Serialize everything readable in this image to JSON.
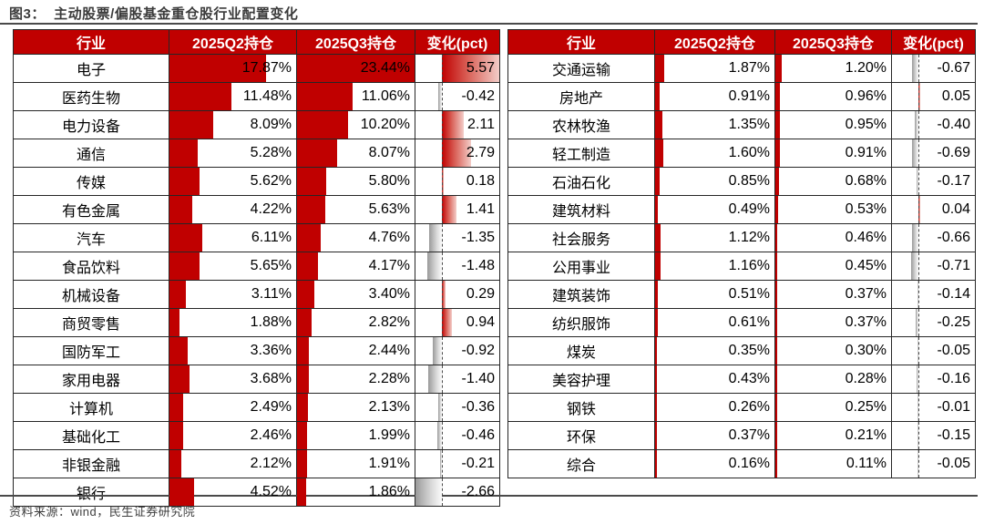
{
  "header": {
    "title": "图3：  主动股票/偏股基金重仓股行业配置变化"
  },
  "columns": [
    "行业",
    "2025Q2持仓",
    "2025Q3持仓",
    "变化(pct)"
  ],
  "tables": [
    {
      "name": "left",
      "rows": [
        [
          "电子",
          "17.87%",
          "23.44%",
          "5.57"
        ],
        [
          "医药生物",
          "11.48%",
          "11.06%",
          "-0.42"
        ],
        [
          "电力设备",
          "8.09%",
          "10.20%",
          "2.11"
        ],
        [
          "通信",
          "5.28%",
          "8.07%",
          "2.79"
        ],
        [
          "传媒",
          "5.62%",
          "5.80%",
          "0.18"
        ],
        [
          "有色金属",
          "4.22%",
          "5.63%",
          "1.41"
        ],
        [
          "汽车",
          "6.11%",
          "4.76%",
          "-1.35"
        ],
        [
          "食品饮料",
          "5.65%",
          "4.17%",
          "-1.48"
        ],
        [
          "机械设备",
          "3.11%",
          "3.40%",
          "0.29"
        ],
        [
          "商贸零售",
          "1.88%",
          "2.82%",
          "0.94"
        ],
        [
          "国防军工",
          "3.36%",
          "2.44%",
          "-0.92"
        ],
        [
          "家用电器",
          "3.68%",
          "2.28%",
          "-1.40"
        ],
        [
          "计算机",
          "2.49%",
          "2.13%",
          "-0.36"
        ],
        [
          "基础化工",
          "2.46%",
          "1.99%",
          "-0.46"
        ],
        [
          "非银金融",
          "2.12%",
          "1.91%",
          "-0.21"
        ],
        [
          "银行",
          "4.52%",
          "1.86%",
          "-2.66"
        ]
      ]
    },
    {
      "name": "right",
      "rows": [
        [
          "交通运输",
          "1.87%",
          "1.20%",
          "-0.67"
        ],
        [
          "房地产",
          "0.91%",
          "0.96%",
          "0.05"
        ],
        [
          "农林牧渔",
          "1.35%",
          "0.95%",
          "-0.40"
        ],
        [
          "轻工制造",
          "1.60%",
          "0.91%",
          "-0.69"
        ],
        [
          "石油石化",
          "0.85%",
          "0.68%",
          "-0.17"
        ],
        [
          "建筑材料",
          "0.49%",
          "0.53%",
          "0.04"
        ],
        [
          "社会服务",
          "1.12%",
          "0.46%",
          "-0.66"
        ],
        [
          "公用事业",
          "1.16%",
          "0.45%",
          "-0.71"
        ],
        [
          "建筑装饰",
          "0.51%",
          "0.37%",
          "-0.14"
        ],
        [
          "纺织服饰",
          "0.61%",
          "0.37%",
          "-0.25"
        ],
        [
          "煤炭",
          "0.35%",
          "0.30%",
          "-0.05"
        ],
        [
          "美容护理",
          "0.43%",
          "0.28%",
          "-0.16"
        ],
        [
          "钢铁",
          "0.26%",
          "0.25%",
          "-0.01"
        ],
        [
          "环保",
          "0.37%",
          "0.21%",
          "-0.15"
        ],
        [
          "综合",
          "0.16%",
          "0.11%",
          "-0.05"
        ]
      ]
    }
  ],
  "footer": {
    "source": "资料来源：wind，民生证券研究院"
  },
  "colors": {
    "header_bg": "#C00000",
    "header_text": "#FFFFFF",
    "bar_red": "#C00000",
    "bar_neg_gray": "#9A9A9A",
    "grid": "#262626",
    "title_text": "#3B3B3B"
  },
  "chart_data": {
    "type": "table",
    "title": "图3：主动股票/偏股基金重仓股行业配置变化",
    "columns": [
      "行业",
      "2025Q2持仓(%)",
      "2025Q3持仓(%)",
      "变化(pct)"
    ],
    "rows": [
      [
        "电子",
        17.87,
        23.44,
        5.57
      ],
      [
        "医药生物",
        11.48,
        11.06,
        -0.42
      ],
      [
        "电力设备",
        8.09,
        10.2,
        2.11
      ],
      [
        "通信",
        5.28,
        8.07,
        2.79
      ],
      [
        "传媒",
        5.62,
        5.8,
        0.18
      ],
      [
        "有色金属",
        4.22,
        5.63,
        1.41
      ],
      [
        "汽车",
        6.11,
        4.76,
        -1.35
      ],
      [
        "食品饮料",
        5.65,
        4.17,
        -1.48
      ],
      [
        "机械设备",
        3.11,
        3.4,
        0.29
      ],
      [
        "商贸零售",
        1.88,
        2.82,
        0.94
      ],
      [
        "国防军工",
        3.36,
        2.44,
        -0.92
      ],
      [
        "家用电器",
        3.68,
        2.28,
        -1.4
      ],
      [
        "计算机",
        2.49,
        2.13,
        -0.36
      ],
      [
        "基础化工",
        2.46,
        1.99,
        -0.46
      ],
      [
        "非银金融",
        2.12,
        1.91,
        -0.21
      ],
      [
        "银行",
        4.52,
        1.86,
        -2.66
      ],
      [
        "交通运输",
        1.87,
        1.2,
        -0.67
      ],
      [
        "房地产",
        0.91,
        0.96,
        0.05
      ],
      [
        "农林牧渔",
        1.35,
        0.95,
        -0.4
      ],
      [
        "轻工制造",
        1.6,
        0.91,
        -0.69
      ],
      [
        "石油石化",
        0.85,
        0.68,
        -0.17
      ],
      [
        "建筑材料",
        0.49,
        0.53,
        0.04
      ],
      [
        "社会服务",
        1.12,
        0.46,
        -0.66
      ],
      [
        "公用事业",
        1.16,
        0.45,
        -0.71
      ],
      [
        "建筑装饰",
        0.51,
        0.37,
        -0.14
      ],
      [
        "纺织服饰",
        0.61,
        0.37,
        -0.25
      ],
      [
        "煤炭",
        0.35,
        0.3,
        -0.05
      ],
      [
        "美容护理",
        0.43,
        0.28,
        -0.16
      ],
      [
        "钢铁",
        0.26,
        0.25,
        -0.01
      ],
      [
        "环保",
        0.37,
        0.21,
        -0.15
      ],
      [
        "综合",
        0.16,
        0.11,
        -0.05
      ]
    ],
    "bar_scale": {
      "holdings_bar_max": 23.44,
      "change_bar_pos_max": 5.57,
      "change_bar_neg_min": -2.66,
      "change_axis_position_pct": 32
    },
    "legend_position": "none",
    "source": "资料来源：wind，民生证券研究院"
  }
}
